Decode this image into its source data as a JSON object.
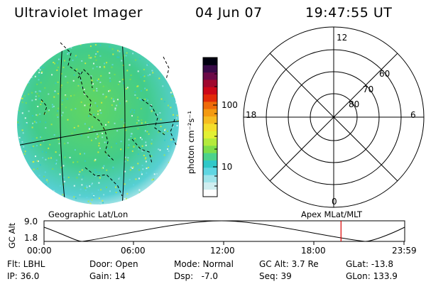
{
  "header": {
    "title": "Ultraviolet Imager",
    "date": "04 Jun 07",
    "time": "19:47:55 UT"
  },
  "colorbar": {
    "unit_label": "photon cm⁻²s⁻¹",
    "ticks": [
      "100",
      "10"
    ],
    "colors": [
      "#ffffff",
      "#cfeef0",
      "#9fe4ea",
      "#5fd6e2",
      "#2fc8c8",
      "#4cd28c",
      "#7ede4a",
      "#b4ea3c",
      "#e2f034",
      "#f4de2c",
      "#f6bc20",
      "#f49a10",
      "#ee6a08",
      "#e22a08",
      "#cc0818",
      "#a0082e",
      "#6c0a48",
      "#380a48",
      "#000010"
    ]
  },
  "polar": {
    "ring_labels": [
      "60",
      "70",
      "80"
    ],
    "mlt_labels": {
      "top": "12",
      "bottom": "0",
      "left": "18",
      "right": "6"
    }
  },
  "timeline": {
    "left_label": "Geographic Lat/Lon",
    "right_label": "Apex MLat/MLT",
    "yaxis_label": "GC Alt",
    "ymax": "9.0",
    "ymin": "1.8",
    "xticks": [
      "00:00",
      "06:00",
      "12:00",
      "18:00",
      "23:59"
    ],
    "marker_time_hours": 19.8,
    "marker_color": "#dd0000"
  },
  "info": {
    "flt": "Flt: LBHL",
    "door": "Door: Open",
    "mode": "Mode: Normal",
    "gc_alt": "GC Alt: 3.7 Re",
    "glat": "GLat: -13.8",
    "ip": "IP: 36.0",
    "gain": "Gain: 14",
    "dsp": "Dsp:   -7.0",
    "seq": "Seq: 39",
    "glon": "GLon: 133.9"
  }
}
